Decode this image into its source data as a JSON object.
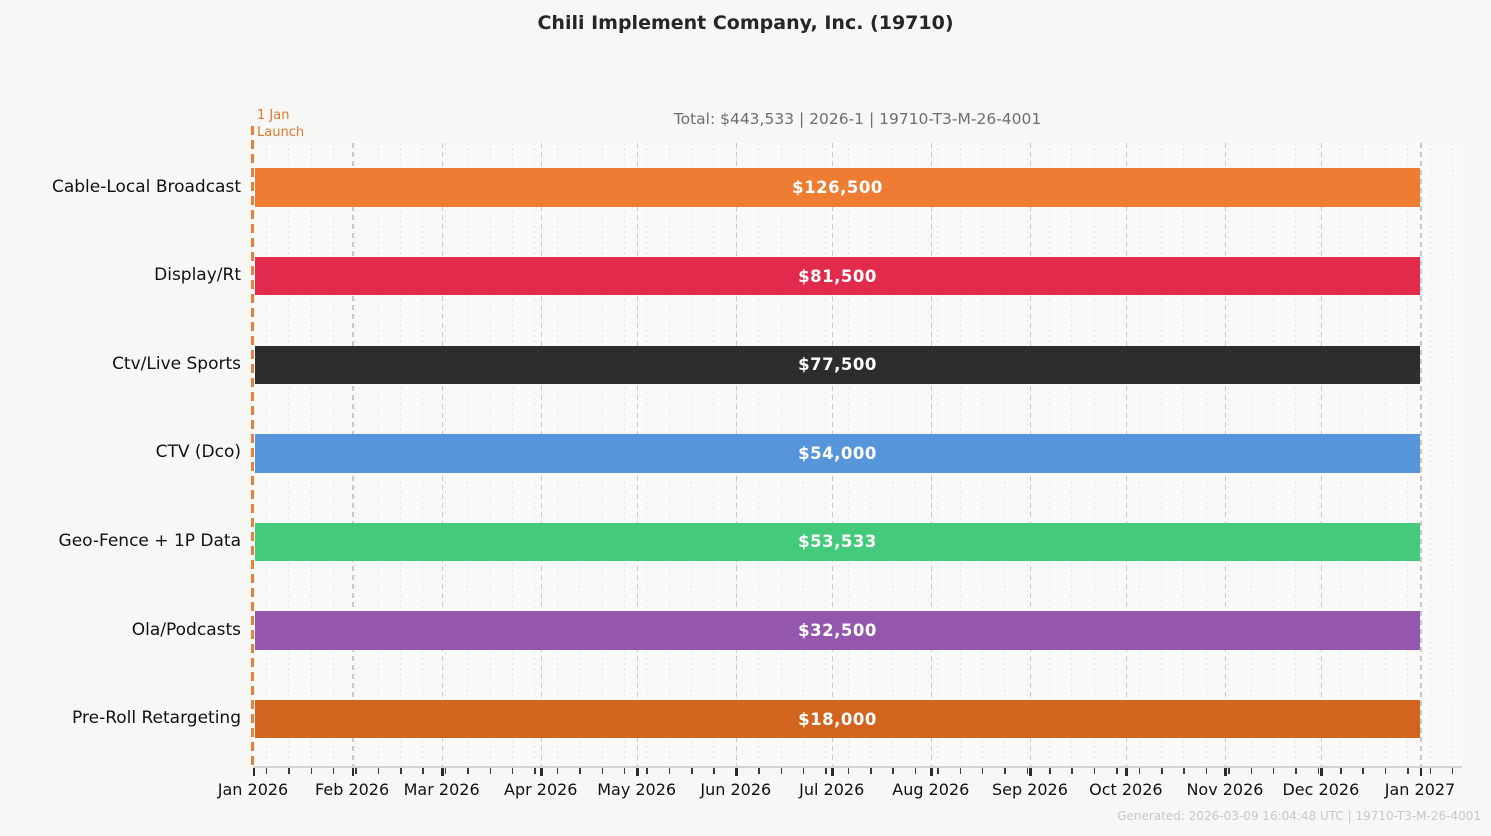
{
  "title": "Chili Implement Company, Inc. (19710)",
  "subtitle": "Total: $443,533  |  2026-1  |  19710-T3-M-26-4001",
  "annotation": {
    "line1": "1 Jan",
    "line2": "Launch",
    "color": "#e0772e"
  },
  "footer": "Generated: 2026-03-09 16:04:48 UTC  |  19710-T3-M-26-4001",
  "colors": {
    "background": "#f7f7f6",
    "launch_line": "#e8813b",
    "grid_major": "#c8c8c8",
    "grid_minor": "#e3e3e3",
    "axis_line": "#d2d2d2",
    "subtitle_text": "#6e6e6e",
    "footer_text": "#c5c9cd"
  },
  "chart_data": {
    "type": "bar",
    "orientation": "horizontal",
    "title": "Chili Implement Company, Inc. (19710)",
    "subtitle": "Total: $443,533  |  2026-1  |  19710-T3-M-26-4001",
    "total_value": 443533,
    "categories": [
      "Cable-Local Broadcast",
      "Display/Rt",
      "Ctv/Live Sports",
      "CTV (Dco)",
      "Geo-Fence + 1P Data",
      "Ola/Podcasts",
      "Pre-Roll Retargeting"
    ],
    "values": [
      126500,
      81500,
      77500,
      54000,
      53533,
      32500,
      18000
    ],
    "value_labels": [
      "$126,500",
      "$81,500",
      "$77,500",
      "$54,000",
      "$53,533",
      "$32,500",
      "$18,000"
    ],
    "bar_colors": [
      "#ee7d33",
      "#e22a4d",
      "#2d2d2d",
      "#5795da",
      "#43ca7b",
      "#9457ad",
      "#d3641d"
    ],
    "bar_span": {
      "start": "1 Jan 2026",
      "end": "1 Jan 2027"
    },
    "x_axis": {
      "type": "time",
      "tick_labels": [
        "Jan 2026",
        "Feb 2026",
        "Mar 2026",
        "Apr 2026",
        "May 2026",
        "Jun 2026",
        "Jul 2026",
        "Aug 2026",
        "Sep 2026",
        "Oct 2026",
        "Nov 2026",
        "Dec 2026",
        "Jan 2027"
      ],
      "minor_ticks": "weekly (Mondays)"
    },
    "annotation": {
      "label": "1 Jan Launch",
      "x": "1 Jan 2026"
    },
    "grid": {
      "major": "dashed vertical monthly",
      "minor": "dotted vertical weekly",
      "legend": "none"
    }
  }
}
